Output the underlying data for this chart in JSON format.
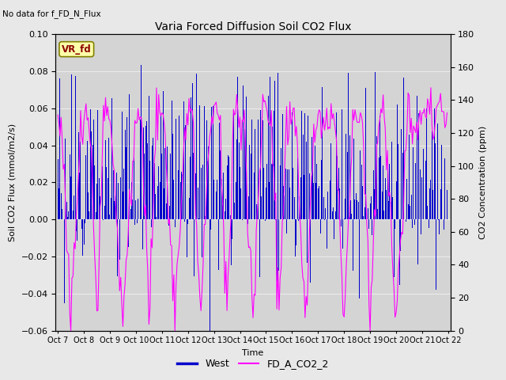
{
  "title": "Varia Forced Diffusion Soil CO2 Flux",
  "no_data_text": "No data for f_FD_N_Flux",
  "ylabel_left": "Soil CO2 Flux (mmol/m2/s)",
  "ylabel_right": "CO2 Concentration (ppm)",
  "xlabel": "Time",
  "ylim_left": [
    -0.06,
    0.1
  ],
  "ylim_right": [
    0,
    180
  ],
  "xtick_labels": [
    "Oct 7",
    "Oct 8",
    "Oct 9",
    "Oct 10",
    "Oct 11",
    "Oct 12",
    "Oct 13",
    "Oct 14",
    "Oct 15",
    "Oct 16",
    "Oct 17",
    "Oct 18",
    "Oct 19",
    "Oct 20",
    "Oct 21",
    "Oct 22"
  ],
  "bg_color": "#e8e8e8",
  "plot_bg_color": "#d4d4d4",
  "bar_color": "#0000cc",
  "line_color": "#ff00ff",
  "legend_entries": [
    "West",
    "FD_A_CO2_2"
  ],
  "vr_fd_label": "VR_fd",
  "seed": 42,
  "n_days": 15,
  "bars_per_day": 24
}
